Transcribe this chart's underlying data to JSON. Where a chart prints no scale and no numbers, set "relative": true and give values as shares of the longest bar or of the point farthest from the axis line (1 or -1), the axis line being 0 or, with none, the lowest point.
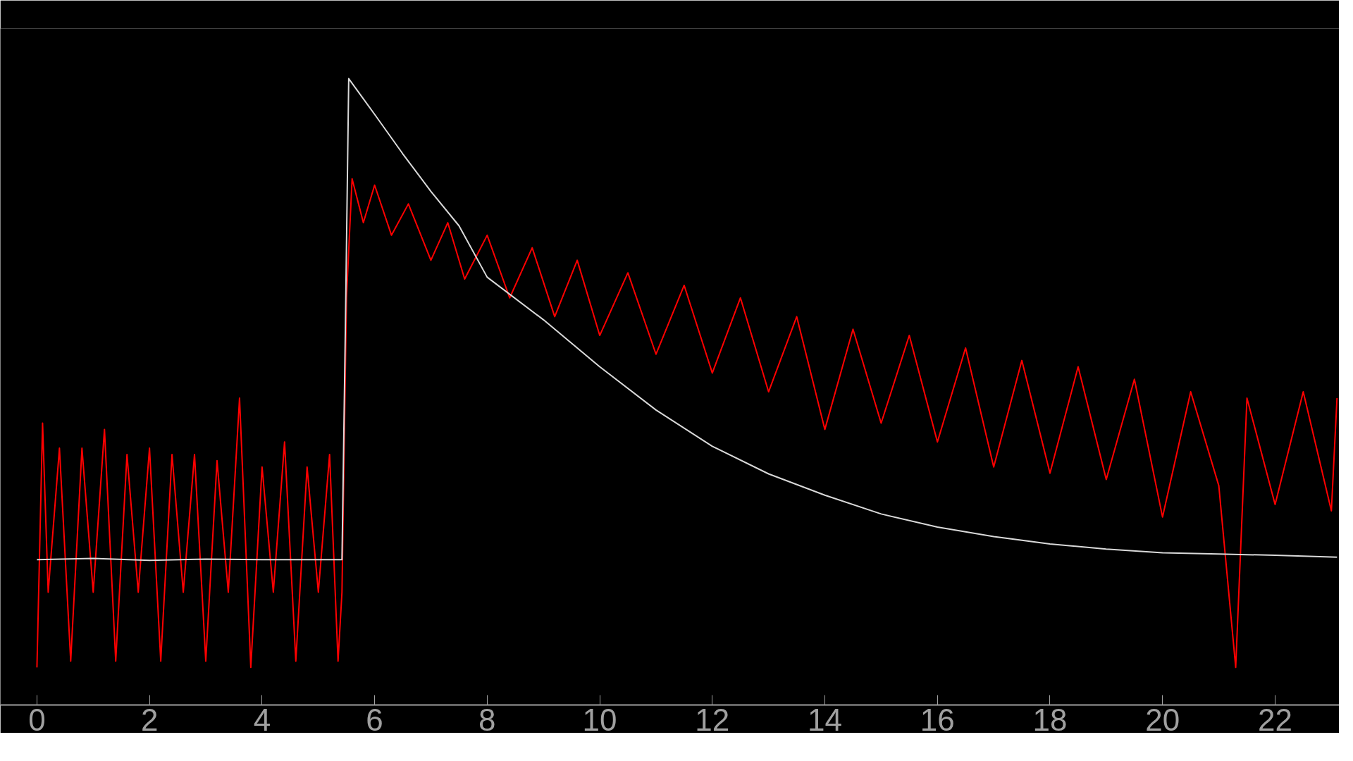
{
  "chart_data": {
    "type": "line",
    "relative": true,
    "xlim": [
      -0.65,
      23.14
    ],
    "xticks": [
      0,
      2,
      4,
      6,
      8,
      10,
      12,
      14,
      16,
      18,
      20,
      22
    ],
    "tick_labels": "x",
    "series": [
      {
        "color": "#ff0000",
        "x": [
          0,
          0.1,
          0.2,
          0.4,
          0.6,
          0.8,
          1.0,
          1.2,
          1.4,
          1.6,
          1.8,
          2.0,
          2.2,
          2.4,
          2.6,
          2.8,
          3.0,
          3.2,
          3.4,
          3.6,
          3.8,
          4.0,
          4.2,
          4.4,
          4.6,
          4.8,
          5.0,
          5.2,
          5.35,
          5.42,
          5.5,
          5.6,
          5.8,
          6.0,
          6.3,
          6.6,
          7.0,
          7.3,
          7.6,
          8.0,
          8.4,
          8.8,
          9.2,
          9.6,
          10.0,
          10.5,
          11.0,
          11.5,
          12.0,
          12.5,
          13.0,
          13.5,
          14.0,
          14.5,
          15.0,
          15.5,
          16.0,
          16.5,
          17.0,
          17.5,
          18.0,
          18.5,
          19.0,
          19.5,
          20.0,
          20.5,
          21.0,
          21.3,
          21.5,
          22.0,
          22.5,
          23.0,
          23.1
        ],
        "values": [
          0.06,
          0.45,
          0.18,
          0.41,
          0.07,
          0.41,
          0.18,
          0.44,
          0.07,
          0.4,
          0.18,
          0.41,
          0.07,
          0.4,
          0.18,
          0.4,
          0.07,
          0.39,
          0.18,
          0.49,
          0.06,
          0.38,
          0.18,
          0.42,
          0.07,
          0.38,
          0.18,
          0.4,
          0.07,
          0.18,
          0.65,
          0.84,
          0.77,
          0.83,
          0.75,
          0.8,
          0.71,
          0.77,
          0.68,
          0.75,
          0.65,
          0.73,
          0.62,
          0.71,
          0.59,
          0.69,
          0.56,
          0.67,
          0.53,
          0.65,
          0.5,
          0.62,
          0.44,
          0.6,
          0.45,
          0.59,
          0.42,
          0.57,
          0.38,
          0.55,
          0.37,
          0.54,
          0.36,
          0.52,
          0.3,
          0.5,
          0.35,
          0.06,
          0.49,
          0.32,
          0.5,
          0.31,
          0.49
        ]
      },
      {
        "color": "#d9d9d9",
        "x": [
          0,
          1,
          2,
          3,
          4,
          5,
          5.42,
          5.48,
          5.54,
          6,
          6.5,
          7,
          7.5,
          8,
          9,
          10,
          11,
          12,
          13,
          14,
          15,
          16,
          17,
          18,
          19,
          20,
          21,
          22,
          23.1
        ],
        "values": [
          0.232,
          0.234,
          0.231,
          0.233,
          0.232,
          0.232,
          0.232,
          0.6,
          1.0,
          0.943,
          0.88,
          0.82,
          0.765,
          0.683,
          0.615,
          0.54,
          0.471,
          0.413,
          0.369,
          0.335,
          0.305,
          0.284,
          0.269,
          0.257,
          0.249,
          0.243,
          0.241,
          0.239,
          0.236
        ]
      }
    ]
  }
}
